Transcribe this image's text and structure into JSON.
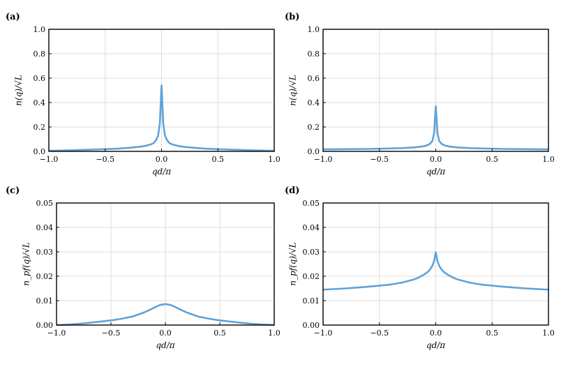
{
  "chart_data": [
    {
      "type": "line",
      "panel_label": "(a)",
      "xlabel": "qd/π",
      "ylabel": "n(q)/√L",
      "xlim": [
        -1.0,
        1.0
      ],
      "ylim": [
        0.0,
        1.0
      ],
      "xticks": [
        "−1.0",
        "−0.5",
        "0.0",
        "0.5",
        "1.0"
      ],
      "yticks": [
        "0.0",
        "0.2",
        "0.4",
        "0.6",
        "0.8",
        "1.0"
      ],
      "grid": true,
      "color": "#5fa2d8",
      "series": [
        {
          "x": [
            -1.0,
            -0.8,
            -0.6,
            -0.4,
            -0.3,
            -0.2,
            -0.15,
            -0.1,
            -0.07,
            -0.05,
            -0.03,
            -0.015,
            0.0,
            0.015,
            0.03,
            0.05,
            0.07,
            0.1,
            0.15,
            0.2,
            0.3,
            0.4,
            0.6,
            0.8,
            1.0
          ],
          "y": [
            0.005,
            0.009,
            0.015,
            0.022,
            0.028,
            0.037,
            0.044,
            0.055,
            0.068,
            0.09,
            0.13,
            0.23,
            0.54,
            0.23,
            0.13,
            0.09,
            0.068,
            0.055,
            0.044,
            0.037,
            0.028,
            0.022,
            0.015,
            0.009,
            0.005
          ]
        }
      ]
    },
    {
      "type": "line",
      "panel_label": "(b)",
      "xlabel": "qd/π",
      "ylabel": "n(q)/√L",
      "xlim": [
        -1.0,
        1.0
      ],
      "ylim": [
        0.0,
        1.0
      ],
      "xticks": [
        "−1.0",
        "−0.5",
        "0.0",
        "0.5",
        "1.0"
      ],
      "yticks": [
        "0.0",
        "0.2",
        "0.4",
        "0.6",
        "0.8",
        "1.0"
      ],
      "grid": true,
      "color": "#5fa2d8",
      "series": [
        {
          "x": [
            -1.0,
            -0.8,
            -0.6,
            -0.4,
            -0.3,
            -0.2,
            -0.15,
            -0.1,
            -0.07,
            -0.05,
            -0.03,
            -0.015,
            0.0,
            0.015,
            0.03,
            0.05,
            0.07,
            0.1,
            0.15,
            0.2,
            0.3,
            0.4,
            0.6,
            0.8,
            1.0
          ],
          "y": [
            0.017,
            0.018,
            0.02,
            0.024,
            0.027,
            0.032,
            0.036,
            0.043,
            0.052,
            0.063,
            0.085,
            0.15,
            0.37,
            0.15,
            0.085,
            0.063,
            0.052,
            0.043,
            0.036,
            0.032,
            0.027,
            0.024,
            0.02,
            0.018,
            0.017
          ]
        }
      ]
    },
    {
      "type": "line",
      "panel_label": "(c)",
      "xlabel": "qd/π",
      "ylabel": "n_pf(q)/√L",
      "xlim": [
        -1.0,
        1.0
      ],
      "ylim": [
        0.0,
        0.05
      ],
      "xticks": [
        "−1.0",
        "−0.5",
        "0.0",
        "0.5",
        "1.0"
      ],
      "yticks": [
        "0.00",
        "0.01",
        "0.02",
        "0.03",
        "0.04",
        "0.05"
      ],
      "grid": true,
      "color": "#5fa2d8",
      "series": [
        {
          "x": [
            -1.0,
            -0.9,
            -0.8,
            -0.7,
            -0.6,
            -0.5,
            -0.4,
            -0.3,
            -0.2,
            -0.15,
            -0.1,
            -0.05,
            0.0,
            0.05,
            0.1,
            0.15,
            0.2,
            0.3,
            0.4,
            0.5,
            0.6,
            0.7,
            0.8,
            0.9,
            1.0
          ],
          "y": [
            0.0,
            0.0002,
            0.0005,
            0.0009,
            0.0014,
            0.0019,
            0.0026,
            0.0035,
            0.0051,
            0.0061,
            0.0072,
            0.0082,
            0.0086,
            0.0082,
            0.0072,
            0.0061,
            0.0051,
            0.0035,
            0.0026,
            0.0019,
            0.0014,
            0.0009,
            0.0005,
            0.0002,
            0.0
          ]
        }
      ]
    },
    {
      "type": "line",
      "panel_label": "(d)",
      "xlabel": "qd/π",
      "ylabel": "n_pf(q)/√L",
      "xlim": [
        -1.0,
        1.0
      ],
      "ylim": [
        0.0,
        0.05
      ],
      "xticks": [
        "−1.0",
        "−0.5",
        "0.0",
        "0.5",
        "1.0"
      ],
      "yticks": [
        "0.00",
        "0.01",
        "0.02",
        "0.03",
        "0.04",
        "0.05"
      ],
      "grid": true,
      "color": "#5fa2d8",
      "series": [
        {
          "x": [
            -1.0,
            -0.8,
            -0.6,
            -0.4,
            -0.3,
            -0.2,
            -0.15,
            -0.1,
            -0.07,
            -0.05,
            -0.03,
            -0.015,
            0.0,
            0.015,
            0.03,
            0.05,
            0.07,
            0.1,
            0.15,
            0.2,
            0.3,
            0.4,
            0.6,
            0.8,
            1.0
          ],
          "y": [
            0.0145,
            0.015,
            0.0157,
            0.0166,
            0.0174,
            0.0186,
            0.0195,
            0.0208,
            0.0218,
            0.0228,
            0.0243,
            0.0262,
            0.0298,
            0.0262,
            0.0243,
            0.0228,
            0.0218,
            0.0208,
            0.0195,
            0.0186,
            0.0174,
            0.0166,
            0.0157,
            0.015,
            0.0145
          ]
        }
      ]
    }
  ]
}
